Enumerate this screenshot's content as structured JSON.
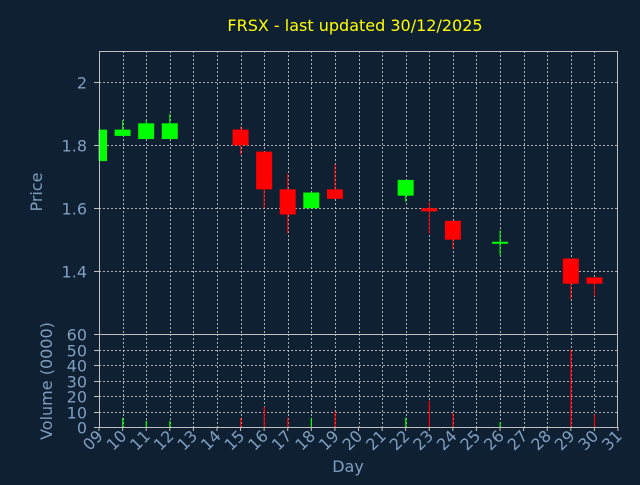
{
  "chart_data": {
    "type": "candlestick",
    "title": "FRSX - last updated 30/12/2025",
    "price_panel": {
      "ylabel": "Price",
      "ylim": [
        1.2,
        2.1
      ],
      "yticks": [
        1.4,
        1.6,
        1.8,
        2
      ]
    },
    "volume_panel": {
      "ylabel": "Volume (0000)",
      "ylim": [
        0,
        60
      ],
      "yticks": [
        0,
        10,
        20,
        30,
        40,
        50,
        60
      ]
    },
    "xlabel": "Day",
    "x_ticks": [
      "09",
      "10",
      "11",
      "12",
      "13",
      "14",
      "15",
      "16",
      "17",
      "18",
      "19",
      "20",
      "21",
      "22",
      "23",
      "24",
      "25",
      "26",
      "27",
      "28",
      "29",
      "30",
      "31"
    ],
    "candles": [
      {
        "day": "09",
        "open": 1.75,
        "high": 1.85,
        "low": 1.75,
        "close": 1.85
      },
      {
        "day": "10",
        "open": 1.83,
        "high": 1.88,
        "low": 1.83,
        "close": 1.85
      },
      {
        "day": "11",
        "open": 1.82,
        "high": 1.88,
        "low": 1.82,
        "close": 1.87
      },
      {
        "day": "12",
        "open": 1.82,
        "high": 1.9,
        "low": 1.82,
        "close": 1.87
      },
      {
        "day": "15",
        "open": 1.85,
        "high": 1.86,
        "low": 1.77,
        "close": 1.8
      },
      {
        "day": "16",
        "open": 1.78,
        "high": 1.78,
        "low": 1.6,
        "close": 1.66
      },
      {
        "day": "17",
        "open": 1.66,
        "high": 1.71,
        "low": 1.52,
        "close": 1.58
      },
      {
        "day": "18",
        "open": 1.6,
        "high": 1.65,
        "low": 1.6,
        "close": 1.65
      },
      {
        "day": "19",
        "open": 1.66,
        "high": 1.74,
        "low": 1.63,
        "close": 1.63
      },
      {
        "day": "22",
        "open": 1.64,
        "high": 1.69,
        "low": 1.62,
        "close": 1.69
      },
      {
        "day": "23",
        "open": 1.6,
        "high": 1.62,
        "low": 1.52,
        "close": 1.59
      },
      {
        "day": "24",
        "open": 1.56,
        "high": 1.56,
        "low": 1.47,
        "close": 1.5
      },
      {
        "day": "26",
        "open": 1.49,
        "high": 1.53,
        "low": 1.45,
        "close": 1.49
      },
      {
        "day": "29",
        "open": 1.44,
        "high": 1.44,
        "low": 1.31,
        "close": 1.36
      },
      {
        "day": "30",
        "open": 1.38,
        "high": 1.38,
        "low": 1.32,
        "close": 1.36
      }
    ],
    "volume": [
      {
        "day": "10",
        "value": 6,
        "direction": "up"
      },
      {
        "day": "11",
        "value": 4,
        "direction": "up"
      },
      {
        "day": "12",
        "value": 4,
        "direction": "up"
      },
      {
        "day": "15",
        "value": 6,
        "direction": "down"
      },
      {
        "day": "16",
        "value": 13,
        "direction": "down"
      },
      {
        "day": "17",
        "value": 6,
        "direction": "down"
      },
      {
        "day": "18",
        "value": 6,
        "direction": "up"
      },
      {
        "day": "19",
        "value": 10,
        "direction": "down"
      },
      {
        "day": "22",
        "value": 6,
        "direction": "up"
      },
      {
        "day": "23",
        "value": 17,
        "direction": "down"
      },
      {
        "day": "24",
        "value": 9,
        "direction": "down"
      },
      {
        "day": "26",
        "value": 3,
        "direction": "up"
      },
      {
        "day": "29",
        "value": 50,
        "direction": "down"
      },
      {
        "day": "30",
        "value": 8,
        "direction": "down"
      }
    ],
    "grid": true,
    "colors": {
      "background": "#0f2033",
      "title": "#ffff00",
      "axis_text": "#7f9fbf",
      "frame": "#c0c0c0",
      "grid": "#c8c8c8",
      "up": "#00ff00",
      "down": "#ff0000"
    }
  }
}
